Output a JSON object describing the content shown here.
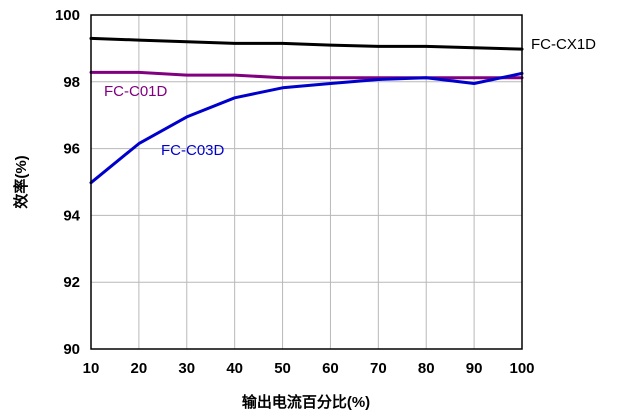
{
  "chart_data": {
    "type": "line",
    "xlabel": "输出电流百分比(%)",
    "ylabel": "效率(%)",
    "xlim": [
      10,
      100
    ],
    "ylim": [
      90,
      100
    ],
    "x_ticks": [
      10,
      20,
      30,
      40,
      50,
      60,
      70,
      80,
      90,
      100
    ],
    "y_ticks": [
      90,
      92,
      94,
      96,
      98,
      100
    ],
    "grid": true,
    "legend": "inline labels",
    "series": [
      {
        "name": "FC-CX1D",
        "color": "#000000",
        "x": [
          10,
          20,
          30,
          40,
          50,
          60,
          70,
          80,
          90,
          100
        ],
        "y": [
          99.3,
          99.25,
          99.2,
          99.15,
          99.15,
          99.1,
          99.06,
          99.06,
          99.02,
          98.98
        ]
      },
      {
        "name": "FC-C01D",
        "color": "#800080",
        "x": [
          10,
          20,
          30,
          40,
          50,
          60,
          70,
          80,
          90,
          100
        ],
        "y": [
          98.28,
          98.28,
          98.2,
          98.2,
          98.12,
          98.12,
          98.12,
          98.12,
          98.12,
          98.12
        ]
      },
      {
        "name": "FC-C03D",
        "color": "#0000CC",
        "x": [
          10,
          20,
          30,
          40,
          50,
          60,
          70,
          80,
          90,
          100
        ],
        "y": [
          94.98,
          96.15,
          96.95,
          97.52,
          97.82,
          97.95,
          98.07,
          98.12,
          97.95,
          98.25
        ]
      }
    ]
  }
}
